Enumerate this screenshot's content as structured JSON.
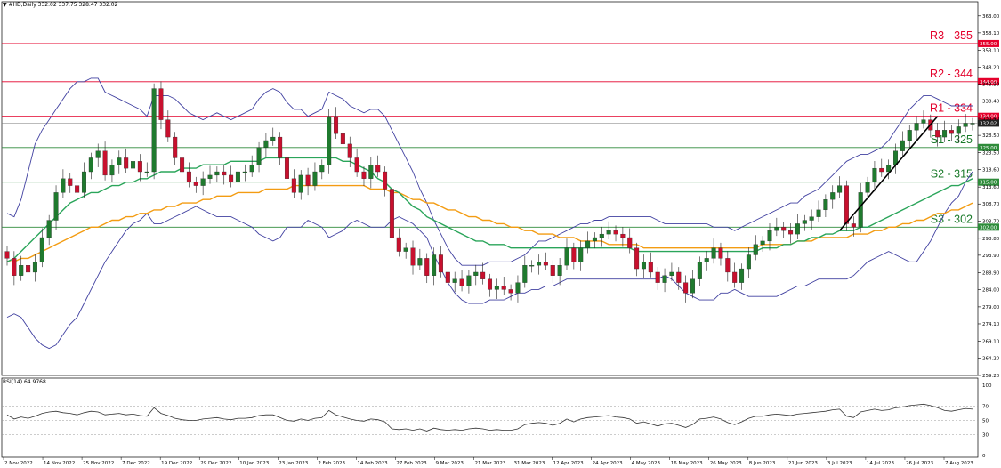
{
  "header": {
    "symbol_line": "▼ #HD,Daily   332.02  337.75  328.47  332.02",
    "rsi_line": "RSI(14) 64.9768"
  },
  "colors": {
    "bull": "#1f7a2e",
    "bear": "#c8102e",
    "bollinger": "#4040a0",
    "sma50": "#2aa55a",
    "sma100": "#f39c12",
    "resistance": "#e4002b",
    "support": "#2e8b3a",
    "trendline": "#000000",
    "rsi": "#333333"
  },
  "chart_data": [
    {
      "type": "candlestick",
      "title": "",
      "ylim": [
        259.2,
        365.0
      ],
      "yticks": [
        "363.00",
        "358.10",
        "353.10",
        "348.20",
        "343.30",
        "338.40",
        "333.40",
        "328.50",
        "323.50",
        "318.60",
        "313.60",
        "308.70",
        "303.70",
        "298.80",
        "293.90",
        "288.90",
        "284.00",
        "279.00",
        "274.10",
        "269.10",
        "264.20",
        "259.20"
      ],
      "x_labels": [
        "2 Nov 2022",
        "14 Nov 2022",
        "25 Nov 2022",
        "7 Dec 2022",
        "19 Dec 2022",
        "29 Dec 2022",
        "10 Jan 2023",
        "23 Jan 2023",
        "2 Feb 2023",
        "14 Feb 2023",
        "27 Feb 2023",
        "9 Mar 2023",
        "21 Mar 2023",
        "31 Mar 2023",
        "12 Apr 2023",
        "24 Apr 2023",
        "4 May 2023",
        "16 May 2023",
        "26 May 2023",
        "8 Jun 2023",
        "21 Jun 2023",
        "3 Jul 2023",
        "14 Jul 2023",
        "26 Jul 2023",
        "7 Aug 2023"
      ],
      "levels": [
        {
          "kind": "resistance",
          "name": "R3 - 355",
          "value": 355.0,
          "tag": "355.00"
        },
        {
          "kind": "resistance",
          "name": "R2 - 344",
          "value": 344.0,
          "tag": "344.00"
        },
        {
          "kind": "resistance",
          "name": "R1 - 334",
          "value": 334.0,
          "tag": "334.00"
        },
        {
          "kind": "support",
          "name": "S1 - 325",
          "value": 325.0,
          "tag": "325.00"
        },
        {
          "kind": "support",
          "name": "S2 - 315",
          "value": 315.0,
          "tag": "315.00"
        },
        {
          "kind": "support",
          "name": "S3 - 302",
          "value": 302.0,
          "tag": "302.00"
        }
      ],
      "last_price": {
        "value": 332.02,
        "tag": "332.02"
      },
      "close": [
        293,
        288,
        291,
        289,
        292,
        299,
        304,
        312,
        316,
        314,
        312,
        318,
        322,
        324,
        317,
        320,
        322,
        319,
        321,
        318,
        318,
        342,
        333,
        328,
        322,
        318,
        315,
        314,
        316,
        317,
        318,
        317,
        315,
        318,
        318,
        320,
        325,
        327,
        328,
        322,
        316,
        312,
        317,
        314,
        318,
        320,
        334,
        329,
        326,
        322,
        318,
        316,
        320,
        318,
        313,
        299,
        295,
        296,
        291,
        293,
        288,
        294,
        289,
        286,
        287,
        285,
        288,
        289,
        287,
        284,
        285,
        284,
        283,
        286,
        291,
        291,
        292,
        291,
        288,
        291,
        296,
        292,
        296,
        298,
        299,
        300,
        301,
        300,
        299,
        296,
        290,
        292,
        289,
        286,
        288,
        289,
        286,
        283,
        287,
        292,
        293,
        296,
        293,
        289,
        286,
        290,
        294,
        297,
        298,
        301,
        302,
        301,
        300,
        303,
        304,
        305,
        307,
        310,
        312,
        314,
        303,
        302,
        312,
        315,
        319,
        318,
        320,
        324,
        327,
        330,
        332,
        333,
        330,
        328,
        330,
        329,
        331,
        332,
        332
      ],
      "bands": {
        "upper": [
          306,
          305,
          310,
          318,
          326,
          330,
          333,
          336,
          339,
          342,
          344,
          344,
          345,
          345,
          341,
          340,
          339,
          338,
          337,
          336,
          334,
          340,
          340,
          340,
          339,
          337,
          335,
          334,
          333,
          334,
          335,
          334,
          333,
          334,
          335,
          336,
          339,
          341,
          342,
          341,
          338,
          336,
          336,
          334,
          335,
          336,
          341,
          340,
          339,
          337,
          336,
          335,
          336,
          336,
          334,
          330,
          326,
          322,
          318,
          313,
          309,
          304,
          300,
          296,
          293,
          291,
          291,
          291,
          291,
          292,
          292,
          292,
          292,
          293,
          294,
          296,
          298,
          298,
          299,
          300,
          301,
          302,
          303,
          303,
          304,
          304,
          305,
          305,
          305,
          305,
          305,
          305,
          305,
          304,
          303,
          303,
          303,
          303,
          303,
          303,
          303,
          302,
          302,
          302,
          301,
          302,
          303,
          304,
          305,
          306,
          307,
          308,
          309,
          309,
          311,
          312,
          313,
          315,
          317,
          319,
          321,
          322,
          323,
          323,
          324,
          325,
          327,
          330,
          333,
          336,
          338,
          340,
          340,
          339,
          338,
          337,
          337,
          337,
          337
        ],
        "middle": [
          291,
          292,
          293,
          294,
          296,
          298,
          300,
          302,
          305,
          307,
          309,
          311,
          313,
          315,
          316,
          317,
          318,
          319,
          320,
          320,
          320,
          321,
          321,
          322,
          322,
          322,
          321,
          321,
          320,
          320,
          320,
          319,
          319,
          319,
          319,
          319,
          319,
          320,
          320,
          320,
          320,
          319,
          319,
          319,
          319,
          319,
          320,
          320,
          320,
          320,
          320,
          319,
          319,
          319,
          318,
          317,
          316,
          314,
          312,
          311,
          309,
          307,
          305,
          303,
          301,
          299,
          297,
          296,
          294,
          293,
          292,
          291,
          290,
          290,
          290,
          290,
          290,
          290,
          290,
          290,
          291,
          291,
          291,
          292,
          292,
          292,
          293,
          293,
          293,
          293,
          293,
          293,
          292,
          292,
          292,
          291,
          291,
          291,
          291,
          291,
          291,
          291,
          292,
          292,
          292,
          292,
          292,
          293,
          293,
          294,
          294,
          295,
          295,
          296,
          297,
          297,
          298,
          299,
          300,
          301,
          302,
          302,
          303,
          304,
          305,
          306,
          307,
          308,
          310,
          312,
          314,
          316,
          318,
          319,
          320,
          321,
          322,
          323,
          324
        ],
        "lower": [
          276,
          277,
          276,
          273,
          270,
          268,
          267,
          268,
          271,
          274,
          276,
          280,
          284,
          288,
          292,
          295,
          298,
          301,
          303,
          304,
          306,
          303,
          303,
          304,
          305,
          306,
          307,
          308,
          307,
          306,
          305,
          305,
          305,
          304,
          303,
          302,
          300,
          299,
          298,
          299,
          302,
          302,
          302,
          304,
          303,
          302,
          299,
          300,
          301,
          303,
          304,
          303,
          302,
          302,
          302,
          304,
          305,
          304,
          303,
          301,
          299,
          294,
          290,
          286,
          283,
          281,
          280,
          280,
          280,
          281,
          281,
          281,
          282,
          283,
          283,
          284,
          284,
          285,
          285,
          286,
          287,
          287,
          287,
          287,
          287,
          287,
          287,
          287,
          287,
          287,
          287,
          287,
          287,
          287,
          288,
          287,
          285,
          283,
          282,
          281,
          281,
          281,
          283,
          283,
          284,
          283,
          282,
          282,
          282,
          282,
          282,
          283,
          284,
          285,
          285,
          286,
          287,
          287,
          287,
          287,
          287,
          288,
          290,
          292,
          293,
          294,
          295,
          294,
          293,
          292,
          292,
          295,
          298,
          302,
          306,
          309,
          311,
          315,
          318
        ]
      },
      "sma50": [
        292,
        293,
        295,
        297,
        299,
        301,
        303,
        305,
        307,
        309,
        310,
        311,
        312,
        312,
        313,
        314,
        314,
        315,
        315,
        316,
        316,
        317,
        318,
        318,
        318,
        319,
        319,
        319,
        320,
        320,
        320,
        320,
        321,
        321,
        321,
        321,
        321,
        322,
        322,
        322,
        322,
        322,
        322,
        322,
        322,
        322,
        322,
        322,
        321,
        321,
        320,
        319,
        318,
        316,
        315,
        313,
        312,
        310,
        308,
        307,
        305,
        304,
        303,
        302,
        301,
        300,
        299,
        298,
        298,
        297,
        297,
        297,
        296,
        296,
        296,
        296,
        296,
        296,
        296,
        296,
        296,
        296,
        296,
        296,
        296,
        296,
        296,
        296,
        296,
        296,
        295,
        295,
        295,
        295,
        295,
        295,
        295,
        295,
        295,
        295,
        295,
        295,
        295,
        295,
        295,
        295,
        295,
        295,
        296,
        296,
        296,
        297,
        297,
        298,
        298,
        299,
        299,
        300,
        300,
        301,
        301,
        301,
        302,
        302,
        303,
        304,
        305,
        306,
        307,
        308,
        309,
        310,
        311,
        312,
        313,
        314,
        314,
        315,
        316
      ],
      "sma100": [
        292,
        292,
        293,
        293,
        294,
        295,
        296,
        297,
        298,
        299,
        300,
        301,
        302,
        302,
        303,
        304,
        304,
        305,
        305,
        306,
        306,
        307,
        307,
        308,
        308,
        309,
        309,
        309,
        310,
        310,
        311,
        311,
        311,
        312,
        312,
        312,
        312,
        313,
        313,
        313,
        313,
        314,
        314,
        314,
        314,
        314,
        314,
        314,
        314,
        314,
        314,
        314,
        313,
        313,
        313,
        312,
        312,
        311,
        310,
        310,
        309,
        309,
        308,
        307,
        307,
        306,
        305,
        305,
        304,
        304,
        303,
        303,
        302,
        302,
        301,
        301,
        300,
        300,
        300,
        299,
        299,
        299,
        298,
        298,
        298,
        298,
        297,
        297,
        297,
        297,
        297,
        296,
        296,
        296,
        296,
        296,
        296,
        296,
        296,
        296,
        296,
        296,
        296,
        296,
        296,
        296,
        296,
        296,
        297,
        297,
        297,
        297,
        297,
        298,
        298,
        298,
        299,
        299,
        299,
        299,
        299,
        300,
        300,
        300,
        301,
        301,
        302,
        302,
        303,
        303,
        304,
        304,
        305,
        306,
        306,
        307,
        307,
        308,
        309
      ],
      "trendline": {
        "from_index": 119,
        "from_value": 301,
        "to_index": 133,
        "to_value": 334
      }
    },
    {
      "type": "line",
      "title": "RSI(14)",
      "ylim": [
        0,
        100
      ],
      "yticks": [
        "100",
        "70",
        "50",
        "30",
        "0"
      ],
      "values": [
        58,
        52,
        55,
        53,
        56,
        60,
        62,
        63,
        61,
        60,
        58,
        61,
        63,
        62,
        58,
        59,
        60,
        58,
        59,
        57,
        56,
        68,
        60,
        57,
        53,
        51,
        50,
        50,
        52,
        53,
        54,
        52,
        51,
        53,
        53,
        54,
        57,
        58,
        58,
        54,
        50,
        49,
        52,
        50,
        53,
        54,
        64,
        58,
        55,
        52,
        50,
        49,
        52,
        51,
        48,
        38,
        37,
        38,
        36,
        38,
        35,
        39,
        37,
        36,
        37,
        36,
        38,
        39,
        38,
        36,
        37,
        36,
        36,
        38,
        44,
        46,
        47,
        46,
        43,
        46,
        52,
        48,
        52,
        54,
        55,
        56,
        57,
        55,
        54,
        52,
        46,
        48,
        45,
        42,
        45,
        46,
        43,
        40,
        44,
        52,
        53,
        55,
        52,
        47,
        44,
        48,
        53,
        56,
        56,
        58,
        59,
        58,
        57,
        59,
        60,
        61,
        62,
        63,
        65,
        66,
        56,
        54,
        62,
        64,
        66,
        64,
        65,
        68,
        69,
        71,
        72,
        73,
        71,
        68,
        64,
        63,
        65,
        67,
        66
      ]
    }
  ]
}
